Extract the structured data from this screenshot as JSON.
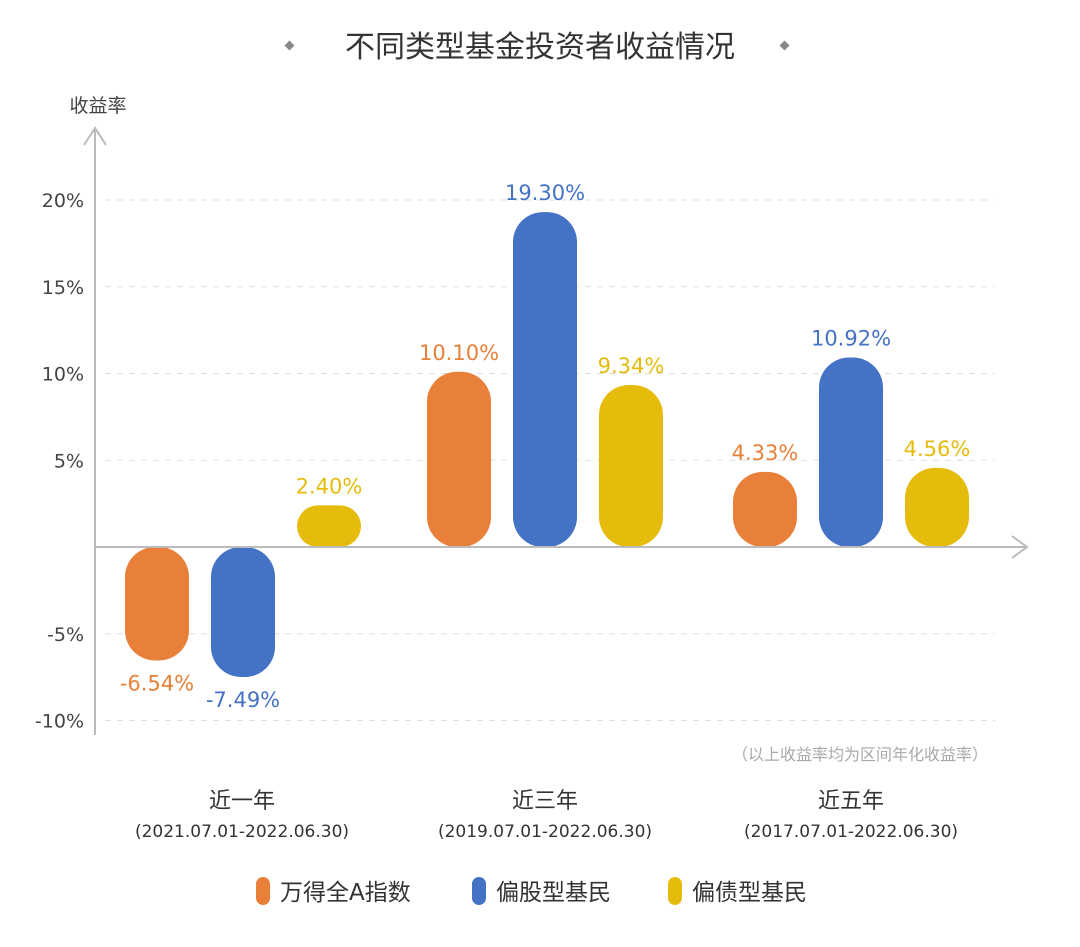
{
  "chart_data": {
    "type": "bar",
    "title": "不同类型基金投资者收益情况",
    "ylabel": "收益率",
    "ylim": [
      -10,
      20
    ],
    "yticks": [
      "-10%",
      "-5%",
      "5%",
      "10%",
      "15%",
      "20%"
    ],
    "grid": true,
    "legend_position": "bottom",
    "categories": [
      "近一年",
      "近三年",
      "近五年"
    ],
    "category_subtitles": [
      "(2021.07.01-2022.06.30)",
      "(2019.07.01-2022.06.30)",
      "(2017.07.01-2022.06.30)"
    ],
    "series": [
      {
        "name": "万得全A指数",
        "color": "#E8803A",
        "values": [
          -6.54,
          10.1,
          4.33
        ],
        "labels": [
          "-6.54%",
          "10.10%",
          "4.33%"
        ]
      },
      {
        "name": "偏股型基民",
        "color": "#4472C4",
        "values": [
          -7.49,
          19.3,
          10.92
        ],
        "labels": [
          "-7.49%",
          "19.30%",
          "10.92%"
        ]
      },
      {
        "name": "偏债型基民",
        "color": "#E5BC0C",
        "values": [
          2.4,
          9.34,
          4.56
        ],
        "labels": [
          "2.40%",
          "9.34%",
          "4.56%"
        ]
      }
    ],
    "note": "（以上收益率均为区间年化收益率）"
  }
}
